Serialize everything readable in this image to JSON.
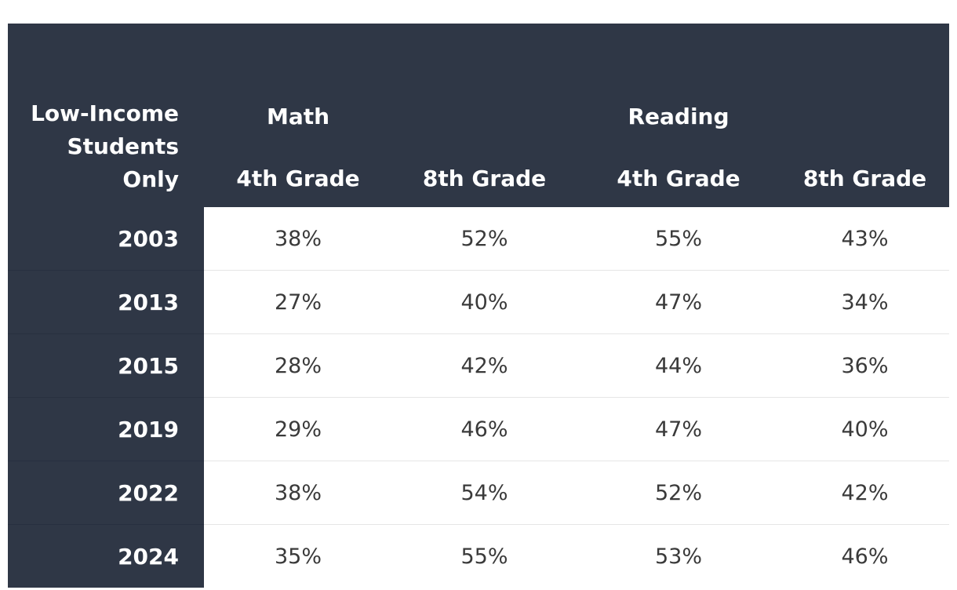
{
  "chart_data": {
    "type": "table",
    "corner_label": "Low-Income Students Only",
    "groups": [
      {
        "name": "Math",
        "columns": [
          "4th Grade",
          "8th Grade"
        ]
      },
      {
        "name": "Reading",
        "columns": [
          "4th Grade",
          "8th Grade"
        ]
      }
    ],
    "rows": [
      {
        "year": "2003",
        "values": [
          "38%",
          "52%",
          "55%",
          "43%"
        ]
      },
      {
        "year": "2013",
        "values": [
          "27%",
          "40%",
          "47%",
          "34%"
        ]
      },
      {
        "year": "2015",
        "values": [
          "28%",
          "42%",
          "44%",
          "36%"
        ]
      },
      {
        "year": "2019",
        "values": [
          "29%",
          "46%",
          "47%",
          "40%"
        ]
      },
      {
        "year": "2022",
        "values": [
          "38%",
          "54%",
          "52%",
          "42%"
        ]
      },
      {
        "year": "2024",
        "values": [
          "35%",
          "55%",
          "53%",
          "46%"
        ]
      }
    ]
  },
  "colors": {
    "header_bg": "#2f3746",
    "header_text": "#ffffff",
    "cell_text": "#3a3a3a",
    "row_divider": "#e6e6e6"
  }
}
